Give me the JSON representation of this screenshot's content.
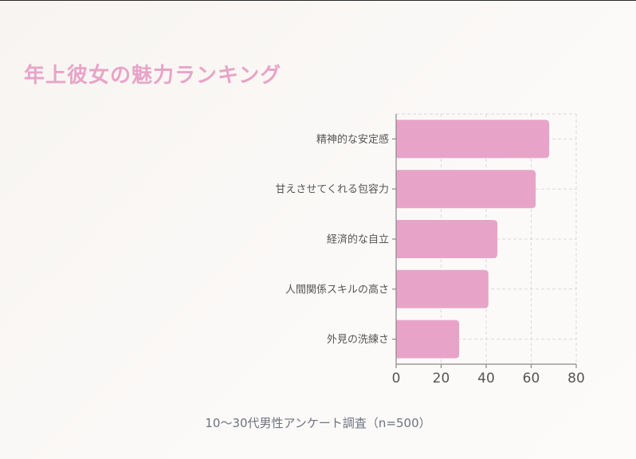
{
  "title": "年上彼女の魅力ランキング",
  "subtitle": "10〜30代男性アンケート調査（n=500）",
  "colors": {
    "bar": "#e8a4c8",
    "title": "#e8a4c8",
    "axis": "#888888",
    "grid": "#d9d9d9",
    "label": "#555555",
    "subtitle": "#6b7280"
  },
  "chart_data": {
    "type": "bar",
    "orientation": "horizontal",
    "categories": [
      "精神的な安定感",
      "甘えさせてくれる包容力",
      "経済的な自立",
      "人間関係スキルの高さ",
      "外見の洗練さ"
    ],
    "values": [
      68,
      62,
      45,
      41,
      28
    ],
    "xlim": [
      0,
      80
    ],
    "xticks": [
      0,
      20,
      40,
      60,
      80
    ],
    "grid": true
  }
}
